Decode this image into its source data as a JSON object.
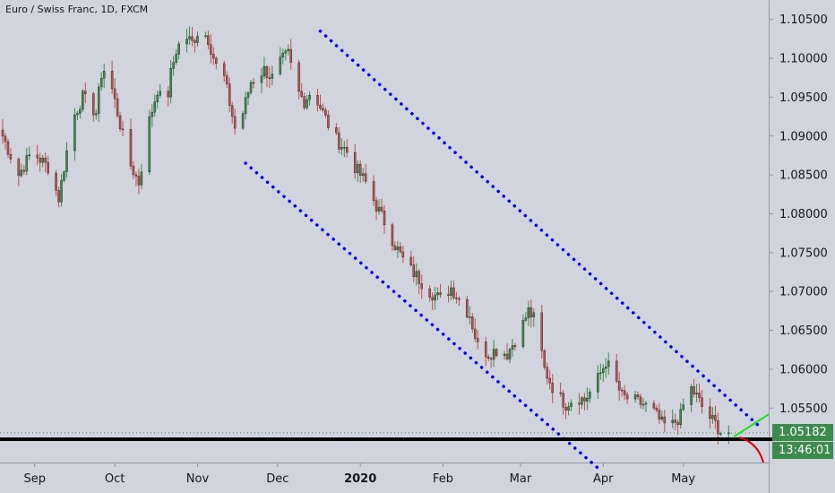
{
  "title": "Euro / Swiss Franc, 1D, FXCM",
  "last_price_label": "1.05182",
  "countdown_label": "13:46:01",
  "colors": {
    "background": "#d1d4dc",
    "up": "#3b8b4c",
    "down": "#c0504d",
    "channel": "#0000ee",
    "support": "#000000",
    "green_arrow": "#22dd22",
    "red_arrow": "#dd0000"
  },
  "chart_data": {
    "type": "candlestick",
    "y_ticks": [
      "1.10500",
      "1.10000",
      "1.09500",
      "1.09000",
      "1.08500",
      "1.08000",
      "1.07500",
      "1.07000",
      "1.06500",
      "1.06000",
      "1.05500"
    ],
    "ylim": [
      1.048,
      1.1075
    ],
    "x_ticks": [
      "Sep",
      "Oct",
      "Nov",
      "Dec",
      "2020",
      "Feb",
      "Mar",
      "Apr",
      "May"
    ],
    "bold_x_ticks": [
      "2020"
    ],
    "grid": false,
    "series": [
      {
        "close_path": [
          [
            "2019-08-20",
            1.09
          ],
          [
            "2019-08-26",
            1.085
          ],
          [
            "2019-08-31",
            1.088
          ],
          [
            "2019-09-06",
            1.086
          ],
          [
            "2019-09-10",
            1.082
          ],
          [
            "2019-09-15",
            1.092
          ],
          [
            "2019-09-19",
            1.095
          ],
          [
            "2019-09-24",
            1.093
          ],
          [
            "2019-09-26",
            1.098
          ],
          [
            "2019-09-28",
            1.099
          ],
          [
            "2019-10-02",
            1.093
          ],
          [
            "2019-10-06",
            1.087
          ],
          [
            "2019-10-10",
            1.084
          ],
          [
            "2019-10-14",
            1.092
          ],
          [
            "2019-10-17",
            1.096
          ],
          [
            "2019-10-20",
            1.093
          ],
          [
            "2019-10-22",
            1.098
          ],
          [
            "2019-10-24",
            1.101
          ],
          [
            "2019-10-27",
            1.103
          ],
          [
            "2019-10-30",
            1.102
          ],
          [
            "2019-11-02",
            1.104
          ],
          [
            "2019-11-05",
            1.1025
          ],
          [
            "2019-11-08",
            1.099
          ],
          [
            "2019-11-11",
            1.0975
          ],
          [
            "2019-11-15",
            1.091
          ],
          [
            "2019-11-18",
            1.093
          ],
          [
            "2019-11-21",
            1.097
          ],
          [
            "2019-11-26",
            1.0985
          ],
          [
            "2019-11-29",
            1.0975
          ],
          [
            "2019-12-02",
            1.0995
          ],
          [
            "2019-12-05",
            1.1005
          ],
          [
            "2019-12-08",
            1.096
          ],
          [
            "2019-12-11",
            1.0945
          ],
          [
            "2019-12-14",
            1.096
          ],
          [
            "2019-12-18",
            1.093
          ],
          [
            "2019-12-22",
            1.09
          ],
          [
            "2019-12-27",
            1.088
          ],
          [
            "2019-12-30",
            1.086
          ],
          [
            "2020-01-03",
            1.084
          ],
          [
            "2020-01-07",
            1.081
          ],
          [
            "2020-01-10",
            1.079
          ],
          [
            "2020-01-14",
            1.076
          ],
          [
            "2020-01-18",
            1.0735
          ],
          [
            "2020-01-22",
            1.072
          ],
          [
            "2020-01-27",
            1.07
          ],
          [
            "2020-01-31",
            1.069
          ],
          [
            "2020-02-04",
            1.0705
          ],
          [
            "2020-02-07",
            1.069
          ],
          [
            "2020-02-11",
            1.067
          ],
          [
            "2020-02-14",
            1.063
          ],
          [
            "2020-02-18",
            1.062
          ],
          [
            "2020-02-21",
            1.0625
          ],
          [
            "2020-02-25",
            1.062
          ],
          [
            "2020-03-01",
            1.065
          ],
          [
            "2020-03-04",
            1.0675
          ],
          [
            "2020-03-07",
            1.066
          ],
          [
            "2020-03-10",
            1.06
          ],
          [
            "2020-03-14",
            1.057
          ],
          [
            "2020-03-18",
            1.0555
          ],
          [
            "2020-03-22",
            1.0565
          ],
          [
            "2020-03-25",
            1.056
          ],
          [
            "2020-03-29",
            1.058
          ],
          [
            "2020-04-02",
            1.061
          ],
          [
            "2020-04-05",
            1.059
          ],
          [
            "2020-04-08",
            1.0565
          ],
          [
            "2020-04-12",
            1.056
          ],
          [
            "2020-04-16",
            1.0555
          ],
          [
            "2020-04-20",
            1.0545
          ],
          [
            "2020-04-23",
            1.053
          ],
          [
            "2020-04-26",
            1.0525
          ],
          [
            "2020-04-30",
            1.054
          ],
          [
            "2020-05-03",
            1.058
          ],
          [
            "2020-05-06",
            1.0565
          ],
          [
            "2020-05-09",
            1.0545
          ],
          [
            "2020-05-13",
            1.053
          ],
          [
            "2020-05-15",
            1.052
          ],
          [
            "2020-05-18",
            1.05182
          ]
        ]
      }
    ],
    "annotations": {
      "channel_upper": [
        [
          "2019-12-17",
          1.1035
        ],
        [
          "2020-05-30",
          1.0525
        ]
      ],
      "channel_lower": [
        [
          "2019-11-19",
          1.0865
        ],
        [
          "2020-03-31",
          1.047
        ]
      ],
      "support": 1.051,
      "last_price": 1.05182
    }
  }
}
